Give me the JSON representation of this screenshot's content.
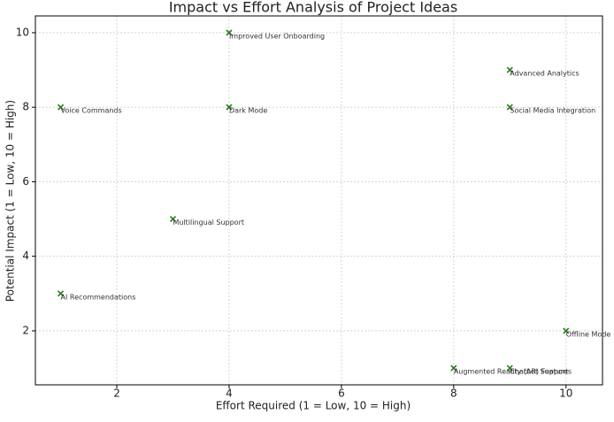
{
  "chart_data": {
    "type": "scatter",
    "title": "Impact vs Effort Analysis of Project Ideas",
    "x_label": "Effort Required (1 = Low, 10 = High)",
    "y_label": "Potential Impact (1 = Low, 10 = High)",
    "x": [
      4,
      9,
      1,
      4,
      9,
      3,
      1,
      10,
      9,
      8
    ],
    "series": [
      {
        "color": "#2a7a1e",
        "values": [
          10,
          9,
          8,
          8,
          8,
          5,
          3,
          2,
          1,
          1
        ]
      }
    ],
    "labels": [
      "Improved User Onboarding",
      "Advanced Analytics",
      "Voice Commands",
      "Dark Mode",
      "Social Media Integration",
      "Multilingual Support",
      "AI Recommendations",
      "Offline Mode",
      "Chatbot Support",
      "Augmented Reality (AR) Features"
    ],
    "xlim": [
      0.55,
      10.65
    ],
    "ylim": [
      0.55,
      10.45
    ],
    "xticks": [
      2,
      4,
      6,
      8,
      10
    ],
    "yticks": [
      2,
      4,
      6,
      8,
      10
    ],
    "grid": true
  }
}
